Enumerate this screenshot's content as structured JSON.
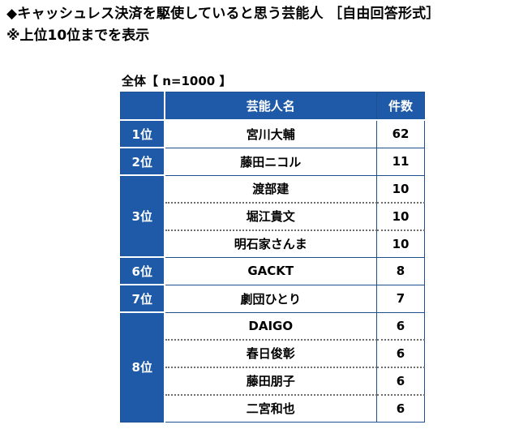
{
  "title": "◆キャッシュレス決済を駆使していると思う芸能人 ［自由回答形式］",
  "note": "※上位10位までを表示",
  "sample_label": "全体【 n=1000 】",
  "table": {
    "headers": {
      "rank": "",
      "name": "芸能人名",
      "count": "件数"
    },
    "rows": [
      {
        "rank": "1位",
        "name": "宮川大輔",
        "count": "62"
      },
      {
        "rank": "2位",
        "name": "藤田ニコル",
        "count": "11"
      },
      {
        "rank": "3位",
        "name": "渡部建",
        "count": "10"
      },
      {
        "rank": "",
        "name": "堀江貴文",
        "count": "10"
      },
      {
        "rank": "",
        "name": "明石家さんま",
        "count": "10"
      },
      {
        "rank": "6位",
        "name": "GACKT",
        "count": "8"
      },
      {
        "rank": "7位",
        "name": "劇団ひとり",
        "count": "7"
      },
      {
        "rank": "8位",
        "name": "DAIGO",
        "count": "6"
      },
      {
        "rank": "",
        "name": "春日俊彰",
        "count": "6"
      },
      {
        "rank": "",
        "name": "藤田朋子",
        "count": "6"
      },
      {
        "rank": "",
        "name": "二宮和也",
        "count": "6"
      }
    ]
  },
  "colors": {
    "header_blue": "#1f5aa8",
    "border_blue": "#1f4e8c",
    "dotted_gray": "#6d6d6d"
  }
}
